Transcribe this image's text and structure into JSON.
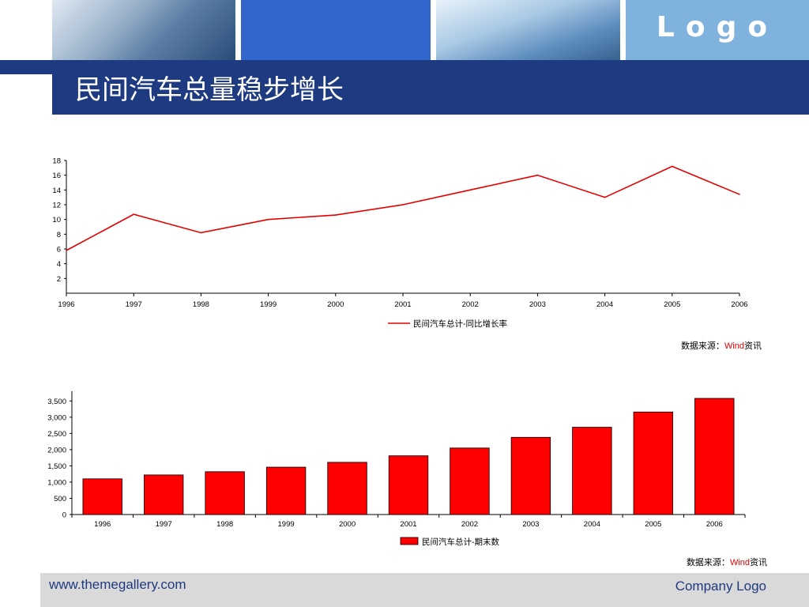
{
  "header": {
    "logo": "Logo",
    "title": "民间汽车总量稳步增长"
  },
  "chart_data": [
    {
      "type": "line",
      "categories": [
        "1996",
        "1997",
        "1998",
        "1999",
        "2000",
        "2001",
        "2002",
        "2003",
        "2004",
        "2005",
        "2006"
      ],
      "series": [
        {
          "name": "民间汽车总计-同比增长率",
          "values": [
            5.8,
            10.7,
            8.2,
            10.0,
            10.6,
            12.0,
            14.0,
            16.0,
            13.0,
            17.2,
            13.4
          ],
          "color": "#e60000"
        }
      ],
      "yticks": [
        "2",
        "4",
        "6",
        "8",
        "10",
        "12",
        "14",
        "16",
        "18"
      ],
      "ylim": [
        0,
        18
      ],
      "legend": "bottom-center",
      "grid": false,
      "source_prefix": "数据来源：",
      "source_name": "Wind",
      "source_suffix": "资讯"
    },
    {
      "type": "bar",
      "categories": [
        "1996",
        "1997",
        "1998",
        "1999",
        "2000",
        "2001",
        "2002",
        "2003",
        "2004",
        "2005",
        "2006"
      ],
      "series": [
        {
          "name": "民间汽车总计-期末数",
          "values": [
            1100,
            1220,
            1320,
            1460,
            1610,
            1810,
            2050,
            2380,
            2690,
            3160,
            3580
          ],
          "color": "#ff0000"
        }
      ],
      "yticks": [
        "0",
        "500",
        "1,000",
        "1,500",
        "2,000",
        "2,500",
        "3,000",
        "3,500"
      ],
      "ylim": [
        0,
        3800
      ],
      "legend": "bottom-center",
      "grid": false,
      "source_prefix": "数据来源：",
      "source_name": "Wind",
      "source_suffix": "资讯"
    }
  ],
  "footer": {
    "url": "www.themegallery.com",
    "company": "Company Logo"
  }
}
